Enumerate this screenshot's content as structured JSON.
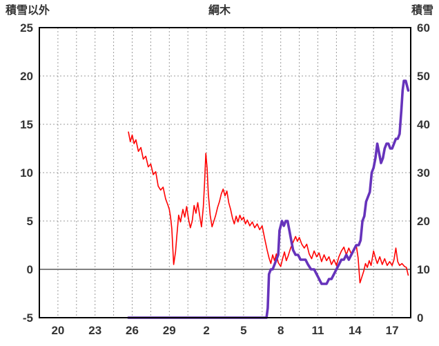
{
  "header": {
    "left_axis_title": "積雪以外",
    "chart_title": "綱木",
    "right_axis_title": "積雪"
  },
  "style": {
    "background": "#ffffff",
    "grid_color": "#999999",
    "zero_line_color": "#808080",
    "frame_color": "#000000",
    "label_color": "#333333",
    "tick_font_size": 17,
    "series_red": "#ff0000",
    "series_purple": "#6633bb"
  },
  "chart_data": {
    "type": "line",
    "title": "綱木",
    "x_axis": {
      "tick_labels": [
        "20",
        "23",
        "26",
        "29",
        "2",
        "5",
        "8",
        "11",
        "14",
        "17"
      ],
      "tick_days": [
        20,
        23,
        26,
        29,
        32,
        35,
        38,
        41,
        44,
        47
      ],
      "range": [
        18.5,
        48.5
      ],
      "grid_start": 20,
      "grid_step": 1.5
    },
    "left_axis": {
      "title": "積雪以外",
      "min": -5,
      "max": 25,
      "tick_values": [
        25,
        20,
        15,
        10,
        5,
        0,
        -5
      ],
      "tick_labels": [
        "25",
        "20",
        "15",
        "10",
        "5",
        "0",
        "-5"
      ]
    },
    "right_axis": {
      "title": "積雪",
      "min": 0,
      "max": 60,
      "tick_values": [
        60,
        50,
        40,
        30,
        20,
        10,
        0
      ],
      "tick_labels": [
        "60",
        "50",
        "40",
        "30",
        "20",
        "10",
        "0"
      ]
    },
    "zero_line_value": 0,
    "grid": true,
    "legend": "none",
    "series": [
      {
        "name": "積雪以外",
        "axis": "left",
        "color": "#ff0000",
        "stroke_width": 1.6,
        "points": [
          [
            25.7,
            14.2
          ],
          [
            25.85,
            13.2
          ],
          [
            26.0,
            13.9
          ],
          [
            26.15,
            13.0
          ],
          [
            26.3,
            13.4
          ],
          [
            26.5,
            12.2
          ],
          [
            26.7,
            12.6
          ],
          [
            26.9,
            11.4
          ],
          [
            27.1,
            11.7
          ],
          [
            27.3,
            10.6
          ],
          [
            27.5,
            10.9
          ],
          [
            27.7,
            9.8
          ],
          [
            27.9,
            10.1
          ],
          [
            28.1,
            8.6
          ],
          [
            28.3,
            8.2
          ],
          [
            28.5,
            8.5
          ],
          [
            28.7,
            7.3
          ],
          [
            28.9,
            6.6
          ],
          [
            29.0,
            6.2
          ],
          [
            29.1,
            5.4
          ],
          [
            29.2,
            4.2
          ],
          [
            29.35,
            0.5
          ],
          [
            29.5,
            1.8
          ],
          [
            29.6,
            3.4
          ],
          [
            29.75,
            5.6
          ],
          [
            29.9,
            4.9
          ],
          [
            30.1,
            6.2
          ],
          [
            30.25,
            5.4
          ],
          [
            30.4,
            6.5
          ],
          [
            30.55,
            5.2
          ],
          [
            30.7,
            4.3
          ],
          [
            30.85,
            5.0
          ],
          [
            31.0,
            6.6
          ],
          [
            31.15,
            5.8
          ],
          [
            31.3,
            6.9
          ],
          [
            31.45,
            5.6
          ],
          [
            31.6,
            4.4
          ],
          [
            31.75,
            6.5
          ],
          [
            31.85,
            9.0
          ],
          [
            31.95,
            12.0
          ],
          [
            32.05,
            10.5
          ],
          [
            32.15,
            7.8
          ],
          [
            32.3,
            5.6
          ],
          [
            32.45,
            4.4
          ],
          [
            32.6,
            5.0
          ],
          [
            32.75,
            5.6
          ],
          [
            32.9,
            6.4
          ],
          [
            33.05,
            7.0
          ],
          [
            33.2,
            7.8
          ],
          [
            33.35,
            8.3
          ],
          [
            33.5,
            7.6
          ],
          [
            33.65,
            8.1
          ],
          [
            33.8,
            6.9
          ],
          [
            33.95,
            6.2
          ],
          [
            34.1,
            5.3
          ],
          [
            34.25,
            4.7
          ],
          [
            34.4,
            5.5
          ],
          [
            34.55,
            4.9
          ],
          [
            34.7,
            5.6
          ],
          [
            34.85,
            5.1
          ],
          [
            35.0,
            5.4
          ],
          [
            35.15,
            4.7
          ],
          [
            35.3,
            5.1
          ],
          [
            35.5,
            4.5
          ],
          [
            35.7,
            4.9
          ],
          [
            35.9,
            4.3
          ],
          [
            36.1,
            4.7
          ],
          [
            36.3,
            4.1
          ],
          [
            36.5,
            4.5
          ],
          [
            36.7,
            3.2
          ],
          [
            36.9,
            2.0
          ],
          [
            37.05,
            1.2
          ],
          [
            37.2,
            0.6
          ],
          [
            37.35,
            1.5
          ],
          [
            37.5,
            0.9
          ],
          [
            37.65,
            1.6
          ],
          [
            37.8,
            0.7
          ],
          [
            38.0,
            0.3
          ],
          [
            38.15,
            1.1
          ],
          [
            38.3,
            1.8
          ],
          [
            38.45,
            0.9
          ],
          [
            38.6,
            1.4
          ],
          [
            38.8,
            2.2
          ],
          [
            39.0,
            2.8
          ],
          [
            39.2,
            3.4
          ],
          [
            39.35,
            2.9
          ],
          [
            39.5,
            3.3
          ],
          [
            39.7,
            2.6
          ],
          [
            39.9,
            2.2
          ],
          [
            40.1,
            2.6
          ],
          [
            40.3,
            1.6
          ],
          [
            40.5,
            1.1
          ],
          [
            40.7,
            1.9
          ],
          [
            40.9,
            1.3
          ],
          [
            41.1,
            1.7
          ],
          [
            41.3,
            0.8
          ],
          [
            41.5,
            1.5
          ],
          [
            41.7,
            0.9
          ],
          [
            41.9,
            1.3
          ],
          [
            42.1,
            0.5
          ],
          [
            42.3,
            1.0
          ],
          [
            42.5,
            0.4
          ],
          [
            42.7,
            1.3
          ],
          [
            42.9,
            1.9
          ],
          [
            43.1,
            2.3
          ],
          [
            43.3,
            1.5
          ],
          [
            43.5,
            2.2
          ],
          [
            43.7,
            1.6
          ],
          [
            43.9,
            2.1
          ],
          [
            44.1,
            2.5
          ],
          [
            44.25,
            1.2
          ],
          [
            44.4,
            -1.4
          ],
          [
            44.55,
            -0.8
          ],
          [
            44.7,
            -0.2
          ],
          [
            44.85,
            0.6
          ],
          [
            45.0,
            0.2
          ],
          [
            45.15,
            0.9
          ],
          [
            45.3,
            0.4
          ],
          [
            45.5,
            1.9
          ],
          [
            45.65,
            1.2
          ],
          [
            45.8,
            0.6
          ],
          [
            46.0,
            1.3
          ],
          [
            46.2,
            0.5
          ],
          [
            46.4,
            1.1
          ],
          [
            46.6,
            0.4
          ],
          [
            46.8,
            0.8
          ],
          [
            47.0,
            0.4
          ],
          [
            47.15,
            1.0
          ],
          [
            47.3,
            2.2
          ],
          [
            47.45,
            0.8
          ],
          [
            47.6,
            0.4
          ],
          [
            47.8,
            0.6
          ],
          [
            48.0,
            0.3
          ],
          [
            48.15,
            0.2
          ],
          [
            48.3,
            -0.6
          ]
        ]
      },
      {
        "name": "積雪",
        "axis": "right",
        "color": "#6633bb",
        "stroke_width": 3.6,
        "points": [
          [
            25.7,
            0
          ],
          [
            30.0,
            0
          ],
          [
            34.0,
            0
          ],
          [
            36.85,
            0
          ],
          [
            36.95,
            2
          ],
          [
            37.05,
            9
          ],
          [
            37.2,
            10
          ],
          [
            37.35,
            10
          ],
          [
            37.5,
            11
          ],
          [
            37.65,
            12
          ],
          [
            37.8,
            13
          ],
          [
            37.9,
            18
          ],
          [
            38.0,
            19
          ],
          [
            38.1,
            20
          ],
          [
            38.25,
            19
          ],
          [
            38.4,
            20
          ],
          [
            38.55,
            20
          ],
          [
            38.7,
            18
          ],
          [
            38.85,
            16
          ],
          [
            39.0,
            14
          ],
          [
            39.2,
            13
          ],
          [
            39.4,
            13
          ],
          [
            39.6,
            12
          ],
          [
            39.8,
            12
          ],
          [
            40.0,
            12
          ],
          [
            40.2,
            11
          ],
          [
            40.45,
            10
          ],
          [
            40.7,
            10
          ],
          [
            40.9,
            9
          ],
          [
            41.1,
            8
          ],
          [
            41.3,
            7
          ],
          [
            41.5,
            7
          ],
          [
            41.7,
            7
          ],
          [
            41.9,
            8
          ],
          [
            42.1,
            8
          ],
          [
            42.3,
            9
          ],
          [
            42.5,
            10
          ],
          [
            42.7,
            11
          ],
          [
            42.9,
            12
          ],
          [
            43.1,
            12
          ],
          [
            43.3,
            13
          ],
          [
            43.5,
            12
          ],
          [
            43.7,
            13
          ],
          [
            43.9,
            14
          ],
          [
            44.1,
            15
          ],
          [
            44.3,
            15
          ],
          [
            44.45,
            16
          ],
          [
            44.6,
            20
          ],
          [
            44.75,
            21
          ],
          [
            44.9,
            24
          ],
          [
            45.05,
            25
          ],
          [
            45.2,
            26
          ],
          [
            45.35,
            30
          ],
          [
            45.5,
            31
          ],
          [
            45.65,
            33
          ],
          [
            45.8,
            36
          ],
          [
            45.95,
            34
          ],
          [
            46.1,
            32
          ],
          [
            46.25,
            33
          ],
          [
            46.4,
            35
          ],
          [
            46.55,
            36
          ],
          [
            46.7,
            36
          ],
          [
            46.85,
            35
          ],
          [
            47.0,
            35
          ],
          [
            47.15,
            36
          ],
          [
            47.3,
            37
          ],
          [
            47.45,
            37
          ],
          [
            47.6,
            38
          ],
          [
            47.75,
            43
          ],
          [
            47.85,
            47
          ],
          [
            47.95,
            49
          ],
          [
            48.1,
            49
          ],
          [
            48.2,
            48
          ],
          [
            48.3,
            47
          ]
        ]
      }
    ]
  }
}
